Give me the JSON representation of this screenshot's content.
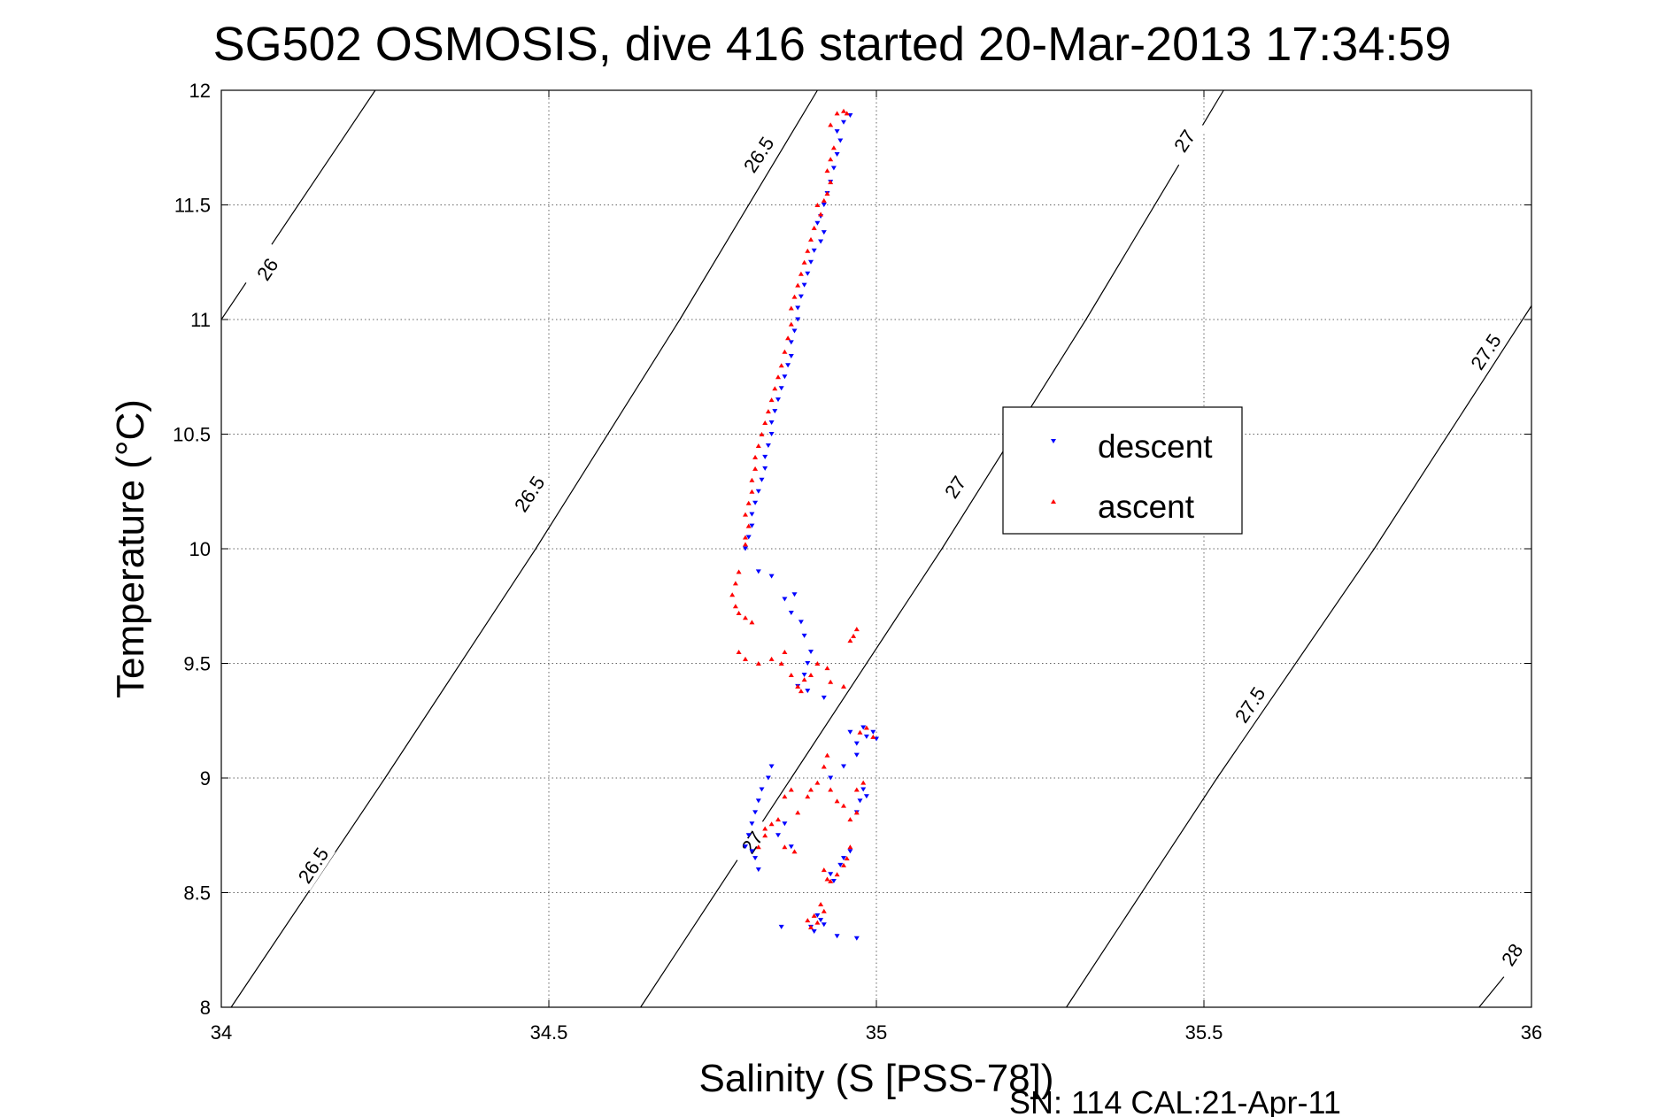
{
  "chart_data": {
    "type": "scatter",
    "title": "SG502 OSMOSIS, dive 416 started 20-Mar-2013 17:34:59",
    "xlabel": "Salinity (S [PSS-78])",
    "ylabel": "Temperature (°C)",
    "xlim": [
      34,
      36
    ],
    "ylim": [
      8,
      12
    ],
    "x_ticks": [
      "34",
      "34.5",
      "35",
      "35.5",
      "36"
    ],
    "y_ticks": [
      "8",
      "8.5",
      "9",
      "9.5",
      "10",
      "10.5",
      "11",
      "11.5",
      "12"
    ],
    "grid": true,
    "legend_position": "center-right",
    "footer": "SN: 114  CAL:21-Apr-11",
    "colors": {
      "descent": "#0000ff",
      "ascent": "#ff0000",
      "contour": "#000000"
    },
    "contours": [
      {
        "level": "26",
        "points": [
          [
            34.0,
            11.0
          ],
          [
            34.235,
            12.0
          ]
        ]
      },
      {
        "level": "26.5",
        "points": [
          [
            34.015,
            8.0
          ],
          [
            34.25,
            9.0
          ],
          [
            34.48,
            10.0
          ],
          [
            34.7,
            11.0
          ],
          [
            34.91,
            12.0
          ]
        ]
      },
      {
        "level": "27",
        "points": [
          [
            34.64,
            8.0
          ],
          [
            34.87,
            9.0
          ],
          [
            35.1,
            10.0
          ],
          [
            35.32,
            11.0
          ],
          [
            35.53,
            12.0
          ]
        ]
      },
      {
        "level": "27.5",
        "points": [
          [
            35.29,
            8.0
          ],
          [
            35.52,
            9.0
          ],
          [
            35.76,
            10.0
          ],
          [
            36.0,
            11.06
          ]
        ]
      },
      {
        "level": "28",
        "points": [
          [
            35.92,
            8.0
          ],
          [
            36.0,
            8.28
          ]
        ]
      }
    ],
    "contour_labels": [
      {
        "text": "26",
        "x": 34.07,
        "y": 11.22
      },
      {
        "text": "26.5",
        "x": 34.82,
        "y": 11.72
      },
      {
        "text": "26.5",
        "x": 34.47,
        "y": 10.24
      },
      {
        "text": "26.5",
        "x": 34.14,
        "y": 8.62
      },
      {
        "text": "27",
        "x": 35.47,
        "y": 11.78
      },
      {
        "text": "27",
        "x": 35.12,
        "y": 10.27
      },
      {
        "text": "27",
        "x": 34.81,
        "y": 8.72
      },
      {
        "text": "27.5",
        "x": 35.93,
        "y": 10.86
      },
      {
        "text": "27.5",
        "x": 35.57,
        "y": 9.32
      },
      {
        "text": "28",
        "x": 35.97,
        "y": 8.23
      }
    ],
    "series": [
      {
        "name": "descent",
        "marker": "triangle-down",
        "points": [
          [
            34.95,
            11.86
          ],
          [
            34.96,
            11.89
          ],
          [
            34.94,
            11.82
          ],
          [
            34.945,
            11.78
          ],
          [
            34.94,
            11.72
          ],
          [
            34.935,
            11.66
          ],
          [
            34.93,
            11.6
          ],
          [
            34.925,
            11.55
          ],
          [
            34.92,
            11.5
          ],
          [
            34.915,
            11.45
          ],
          [
            34.91,
            11.42
          ],
          [
            34.92,
            11.38
          ],
          [
            34.915,
            11.34
          ],
          [
            34.905,
            11.3
          ],
          [
            34.9,
            11.25
          ],
          [
            34.895,
            11.2
          ],
          [
            34.89,
            11.15
          ],
          [
            34.885,
            11.1
          ],
          [
            34.88,
            11.05
          ],
          [
            34.88,
            11.0
          ],
          [
            34.875,
            10.95
          ],
          [
            34.87,
            10.9
          ],
          [
            34.87,
            10.84
          ],
          [
            34.865,
            10.8
          ],
          [
            34.86,
            10.75
          ],
          [
            34.855,
            10.7
          ],
          [
            34.85,
            10.65
          ],
          [
            34.845,
            10.6
          ],
          [
            34.84,
            10.55
          ],
          [
            34.84,
            10.5
          ],
          [
            34.835,
            10.45
          ],
          [
            34.83,
            10.4
          ],
          [
            34.83,
            10.35
          ],
          [
            34.825,
            10.3
          ],
          [
            34.82,
            10.25
          ],
          [
            34.815,
            10.2
          ],
          [
            34.81,
            10.15
          ],
          [
            34.81,
            10.1
          ],
          [
            34.805,
            10.05
          ],
          [
            34.8,
            10.0
          ],
          [
            34.82,
            9.9
          ],
          [
            34.84,
            9.88
          ],
          [
            34.86,
            9.78
          ],
          [
            34.87,
            9.72
          ],
          [
            34.875,
            9.8
          ],
          [
            34.885,
            9.68
          ],
          [
            34.89,
            9.62
          ],
          [
            34.9,
            9.55
          ],
          [
            34.895,
            9.5
          ],
          [
            34.89,
            9.45
          ],
          [
            34.88,
            9.4
          ],
          [
            34.895,
            9.38
          ],
          [
            34.92,
            9.35
          ],
          [
            34.96,
            9.2
          ],
          [
            34.97,
            9.15
          ],
          [
            34.985,
            9.18
          ],
          [
            34.995,
            9.2
          ],
          [
            35.0,
            9.17
          ],
          [
            34.98,
            9.22
          ],
          [
            34.97,
            9.1
          ],
          [
            34.95,
            9.05
          ],
          [
            34.93,
            9.0
          ],
          [
            34.98,
            8.95
          ],
          [
            34.975,
            8.9
          ],
          [
            34.985,
            8.92
          ],
          [
            34.97,
            8.85
          ],
          [
            34.84,
            9.05
          ],
          [
            34.835,
            9.0
          ],
          [
            34.825,
            8.95
          ],
          [
            34.82,
            8.9
          ],
          [
            34.815,
            8.85
          ],
          [
            34.81,
            8.8
          ],
          [
            34.805,
            8.75
          ],
          [
            34.8,
            8.7
          ],
          [
            34.81,
            8.68
          ],
          [
            34.815,
            8.65
          ],
          [
            34.82,
            8.6
          ],
          [
            34.85,
            8.75
          ],
          [
            34.86,
            8.8
          ],
          [
            34.87,
            8.7
          ],
          [
            34.93,
            8.58
          ],
          [
            34.935,
            8.55
          ],
          [
            34.945,
            8.62
          ],
          [
            34.95,
            8.65
          ],
          [
            34.96,
            8.68
          ],
          [
            34.91,
            8.4
          ],
          [
            34.915,
            8.38
          ],
          [
            34.92,
            8.36
          ],
          [
            34.905,
            8.33
          ],
          [
            34.9,
            8.35
          ],
          [
            34.94,
            8.31
          ],
          [
            34.97,
            8.3
          ],
          [
            34.855,
            8.35
          ]
        ]
      },
      {
        "name": "ascent",
        "marker": "triangle-up",
        "points": [
          [
            34.94,
            11.9
          ],
          [
            34.95,
            11.91
          ],
          [
            34.955,
            11.9
          ],
          [
            34.93,
            11.85
          ],
          [
            34.935,
            11.75
          ],
          [
            34.93,
            11.7
          ],
          [
            34.925,
            11.65
          ],
          [
            34.93,
            11.6
          ],
          [
            34.925,
            11.55
          ],
          [
            34.92,
            11.52
          ],
          [
            34.91,
            11.5
          ],
          [
            34.915,
            11.46
          ],
          [
            34.905,
            11.4
          ],
          [
            34.9,
            11.35
          ],
          [
            34.895,
            11.3
          ],
          [
            34.89,
            11.25
          ],
          [
            34.885,
            11.2
          ],
          [
            34.88,
            11.15
          ],
          [
            34.875,
            11.1
          ],
          [
            34.87,
            11.05
          ],
          [
            34.87,
            10.98
          ],
          [
            34.865,
            10.92
          ],
          [
            34.86,
            10.86
          ],
          [
            34.855,
            10.8
          ],
          [
            34.85,
            10.75
          ],
          [
            34.845,
            10.7
          ],
          [
            34.84,
            10.65
          ],
          [
            34.835,
            10.6
          ],
          [
            34.83,
            10.55
          ],
          [
            34.825,
            10.5
          ],
          [
            34.82,
            10.45
          ],
          [
            34.815,
            10.4
          ],
          [
            34.815,
            10.35
          ],
          [
            34.81,
            10.3
          ],
          [
            34.81,
            10.25
          ],
          [
            34.805,
            10.2
          ],
          [
            34.8,
            10.15
          ],
          [
            34.805,
            10.1
          ],
          [
            34.8,
            10.05
          ],
          [
            34.8,
            10.02
          ],
          [
            34.79,
            9.9
          ],
          [
            34.785,
            9.85
          ],
          [
            34.78,
            9.8
          ],
          [
            34.785,
            9.75
          ],
          [
            34.79,
            9.72
          ],
          [
            34.8,
            9.7
          ],
          [
            34.81,
            9.68
          ],
          [
            34.79,
            9.55
          ],
          [
            34.8,
            9.52
          ],
          [
            34.82,
            9.5
          ],
          [
            34.84,
            9.52
          ],
          [
            34.855,
            9.5
          ],
          [
            34.86,
            9.55
          ],
          [
            34.87,
            9.45
          ],
          [
            34.88,
            9.4
          ],
          [
            34.885,
            9.38
          ],
          [
            34.89,
            9.43
          ],
          [
            34.9,
            9.45
          ],
          [
            34.91,
            9.5
          ],
          [
            34.925,
            9.48
          ],
          [
            34.93,
            9.42
          ],
          [
            34.95,
            9.4
          ],
          [
            34.96,
            9.6
          ],
          [
            34.97,
            9.65
          ],
          [
            34.965,
            9.62
          ],
          [
            34.975,
            9.2
          ],
          [
            34.985,
            9.22
          ],
          [
            34.995,
            9.18
          ],
          [
            34.92,
            9.05
          ],
          [
            34.925,
            9.1
          ],
          [
            34.91,
            8.98
          ],
          [
            34.9,
            8.95
          ],
          [
            34.895,
            8.92
          ],
          [
            34.93,
            8.95
          ],
          [
            34.94,
            8.9
          ],
          [
            34.95,
            8.88
          ],
          [
            34.96,
            8.82
          ],
          [
            34.97,
            8.85
          ],
          [
            34.98,
            8.98
          ],
          [
            34.97,
            8.95
          ],
          [
            34.86,
            8.92
          ],
          [
            34.87,
            8.95
          ],
          [
            34.88,
            8.85
          ],
          [
            34.85,
            8.82
          ],
          [
            34.84,
            8.8
          ],
          [
            34.83,
            8.75
          ],
          [
            34.82,
            8.7
          ],
          [
            34.83,
            8.78
          ],
          [
            34.86,
            8.7
          ],
          [
            34.875,
            8.68
          ],
          [
            34.92,
            8.6
          ],
          [
            34.925,
            8.56
          ],
          [
            34.93,
            8.55
          ],
          [
            34.94,
            8.58
          ],
          [
            34.95,
            8.62
          ],
          [
            34.955,
            8.65
          ],
          [
            34.96,
            8.7
          ],
          [
            34.915,
            8.45
          ],
          [
            34.905,
            8.4
          ],
          [
            34.91,
            8.37
          ],
          [
            34.9,
            8.35
          ],
          [
            34.895,
            8.38
          ],
          [
            34.92,
            8.42
          ]
        ]
      }
    ]
  }
}
